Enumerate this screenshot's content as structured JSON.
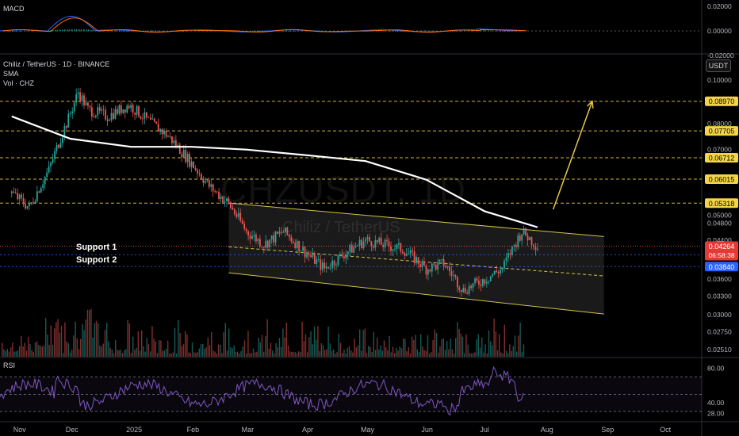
{
  "header": {
    "symbol_line": "Chiliz / TetherUS · 1D · BINANCE",
    "indicator_sma": "SMA",
    "indicator_vol": "Vol · CHZ",
    "currency": "USDT"
  },
  "macd": {
    "title": "MACD",
    "ticks": [
      "0.02000",
      "0.00000",
      "-0.02000"
    ]
  },
  "rsi": {
    "title": "RSI",
    "ticks": [
      "80.00",
      "40.00",
      "28.00"
    ]
  },
  "watermark": {
    "symbol": "CHZUSDT, 1D",
    "name": "Chiliz / TetherUS"
  },
  "annotations": {
    "support1": "Support 1",
    "support2": "Support 2"
  },
  "colors": {
    "up": "#26a69a",
    "down": "#ef5350",
    "target_line": "#e6c84a",
    "channel": "#d4c24a",
    "sma": "#ffffff",
    "support_line": "#2962ff",
    "macd_line": "#2962ff",
    "signal_line": "#ff6d00",
    "rsi_line": "#7e57c2"
  },
  "chart_data": [
    {
      "type": "line",
      "title": "Chiliz / TetherUS · 1D · BINANCE",
      "price_axis": {
        "scale": "log",
        "ticks": [
          "0.10000",
          "0.08000",
          "0.07000",
          "0.05000",
          "0.04800",
          "0.04400",
          "0.03600",
          "0.03300",
          "0.03000",
          "0.02750",
          "0.02510"
        ]
      },
      "time_axis": {
        "labels": [
          "Nov",
          "Dec",
          "2025",
          "Feb",
          "Mar",
          "Apr",
          "May",
          "Jun",
          "Jul",
          "Aug",
          "Sep",
          "Oct"
        ]
      },
      "price_series": {
        "name": "CHZUSDT close",
        "x": [
          "2024-11-01",
          "2024-11-10",
          "2024-11-20",
          "2024-11-30",
          "2024-12-05",
          "2024-12-10",
          "2024-12-20",
          "2024-12-31",
          "2025-01-10",
          "2025-01-20",
          "2025-01-31",
          "2025-02-10",
          "2025-02-20",
          "2025-03-01",
          "2025-03-10",
          "2025-03-20",
          "2025-04-01",
          "2025-04-10",
          "2025-04-20",
          "2025-05-01",
          "2025-05-10",
          "2025-05-20",
          "2025-06-01",
          "2025-06-10",
          "2025-06-20",
          "2025-07-01",
          "2025-07-10",
          "2025-07-20",
          "2025-07-28"
        ],
        "values": [
          0.056,
          0.052,
          0.063,
          0.082,
          0.094,
          0.086,
          0.083,
          0.088,
          0.081,
          0.075,
          0.066,
          0.058,
          0.053,
          0.046,
          0.043,
          0.046,
          0.041,
          0.038,
          0.041,
          0.044,
          0.043,
          0.042,
          0.038,
          0.039,
          0.034,
          0.036,
          0.038,
          0.046,
          0.04264
        ]
      },
      "sma_series": {
        "name": "SMA",
        "x": [
          "2024-11-01",
          "2024-12-01",
          "2025-01-01",
          "2025-02-01",
          "2025-03-01",
          "2025-04-01",
          "2025-05-01",
          "2025-06-01",
          "2025-07-01",
          "2025-07-28"
        ],
        "values": [
          0.083,
          0.074,
          0.071,
          0.071,
          0.07,
          0.068,
          0.066,
          0.06,
          0.051,
          0.047
        ]
      },
      "levels": [
        {
          "label": "0.08970",
          "value": 0.0897,
          "style": "target"
        },
        {
          "label": "0.07705",
          "value": 0.07705,
          "style": "target"
        },
        {
          "label": "0.06712",
          "value": 0.06712,
          "style": "target"
        },
        {
          "label": "0.06015",
          "value": 0.06015,
          "style": "target"
        },
        {
          "label": "0.05318",
          "value": 0.05318,
          "style": "target"
        },
        {
          "label": "0.04081",
          "value": 0.04081,
          "style": "support"
        },
        {
          "label": "0.03840",
          "value": 0.0384,
          "style": "support"
        }
      ],
      "current_price": {
        "label": "0.04264",
        "countdown": "06:58:38"
      },
      "channel": {
        "start": "2025-02-20",
        "end": "2025-08-31",
        "upper": [
          0.0532,
          0.0448
        ],
        "middle": [
          0.0425,
          0.0366
        ],
        "lower": [
          0.0372,
          0.0301
        ]
      },
      "arrow": {
        "from": [
          "2025-08-05",
          0.0515
        ],
        "to": [
          "2025-08-25",
          0.0897
        ]
      },
      "grid": false,
      "legend": "top-left"
    },
    {
      "type": "bar",
      "title": "Vol · CHZ",
      "note": "volume histogram, up/down colored"
    },
    {
      "type": "line",
      "title": "MACD",
      "ylim": [
        -0.02,
        0.02
      ],
      "series": [
        {
          "name": "MACD"
        },
        {
          "name": "Signal"
        },
        {
          "name": "Histogram"
        }
      ]
    },
    {
      "type": "line",
      "title": "RSI",
      "ylim": [
        28,
        80
      ],
      "bands": [
        70,
        50,
        30
      ]
    }
  ]
}
